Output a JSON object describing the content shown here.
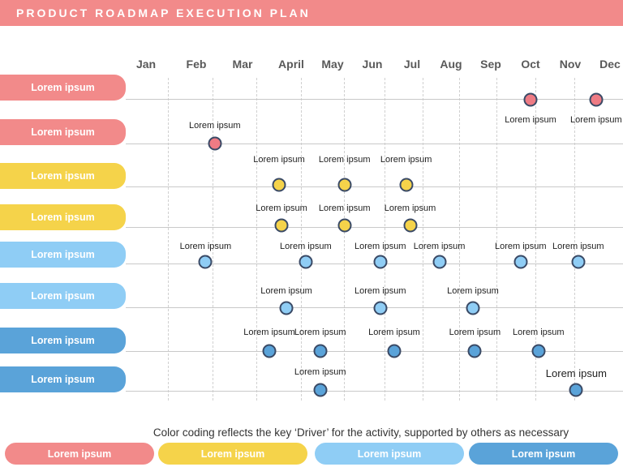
{
  "title": "PRODUCT ROADMAP EXECUTION PLAN",
  "colors": {
    "red": "#f28a8a",
    "yellow": "#f5d34a",
    "lightblue": "#8fcdf5",
    "blue": "#5aa3d9",
    "dot_red": "#ee7b84",
    "dot_yellow": "#f5d34a",
    "dot_lightblue": "#8fcdf5",
    "dot_blue": "#5aa3d9"
  },
  "months": [
    "Jan",
    "Feb",
    "Mar",
    "April",
    "May",
    "Jun",
    "Jul",
    "Aug",
    "Sep",
    "Oct",
    "Nov",
    "Dec"
  ],
  "rows": [
    {
      "label": "Lorem ipsum",
      "color": "red",
      "milestones": [
        {
          "label": "Lorem ipsum",
          "month": 10.0
        },
        {
          "label": "Lorem ipsum",
          "month": 11.65
        }
      ]
    },
    {
      "label": "Lorem ipsum",
      "color": "red",
      "milestones": [
        {
          "label": "Lorem ipsum",
          "month": 2.4
        }
      ]
    },
    {
      "label": "Lorem ipsum",
      "color": "yellow",
      "milestones": [
        {
          "label": "Lorem ipsum",
          "month": 3.75
        },
        {
          "label": "Lorem ipsum",
          "month": 5.3
        },
        {
          "label": "Lorem ipsum",
          "month": 6.85
        }
      ]
    },
    {
      "label": "Lorem ipsum",
      "color": "yellow",
      "milestones": [
        {
          "label": "Lorem ipsum",
          "month": 3.8
        },
        {
          "label": "Lorem ipsum",
          "month": 5.3
        },
        {
          "label": "Lorem ipsum",
          "month": 6.95
        }
      ]
    },
    {
      "label": "Lorem ipsum",
      "color": "lightblue",
      "milestones": [
        {
          "label": "Lorem ipsum",
          "month": 2.2
        },
        {
          "label": "Lorem ipsum",
          "month": 4.35
        },
        {
          "label": "Lorem ipsum",
          "month": 6.2
        },
        {
          "label": "Lorem ipsum",
          "month": 7.7
        },
        {
          "label": "Lorem ipsum",
          "month": 9.75
        },
        {
          "label": "Lorem ipsum",
          "month": 11.2
        }
      ]
    },
    {
      "label": "Lorem ipsum",
      "color": "lightblue",
      "milestones": [
        {
          "label": "Lorem ipsum",
          "month": 3.9
        },
        {
          "label": "Lorem ipsum",
          "month": 6.2
        },
        {
          "label": "Lorem ipsum",
          "month": 8.55
        }
      ]
    },
    {
      "label": "Lorem ipsum",
      "color": "blue",
      "milestones": [
        {
          "label": "Lorem ipsum",
          "month": 3.55
        },
        {
          "label": "Lorem ipsum",
          "month": 4.7
        },
        {
          "label": "Lorem ipsum",
          "month": 6.55
        },
        {
          "label": "Lorem ipsum",
          "month": 8.6
        },
        {
          "label": "Lorem ipsum",
          "month": 10.2
        }
      ]
    },
    {
      "label": "Lorem ipsum",
      "color": "blue",
      "milestones": [
        {
          "label": "Lorem ipsum",
          "month": 4.7
        },
        {
          "label": "Lorem ipsum",
          "month": 11.15,
          "big": true
        }
      ]
    }
  ],
  "caption": "Color coding reflects the key ‘Driver’ for the activity, supported by others as necessary",
  "legend": [
    {
      "label": "Lorem ipsum",
      "color": "red"
    },
    {
      "label": "Lorem ipsum",
      "color": "yellow"
    },
    {
      "label": "Lorem ipsum",
      "color": "lightblue"
    },
    {
      "label": "Lorem ipsum",
      "color": "blue"
    }
  ]
}
